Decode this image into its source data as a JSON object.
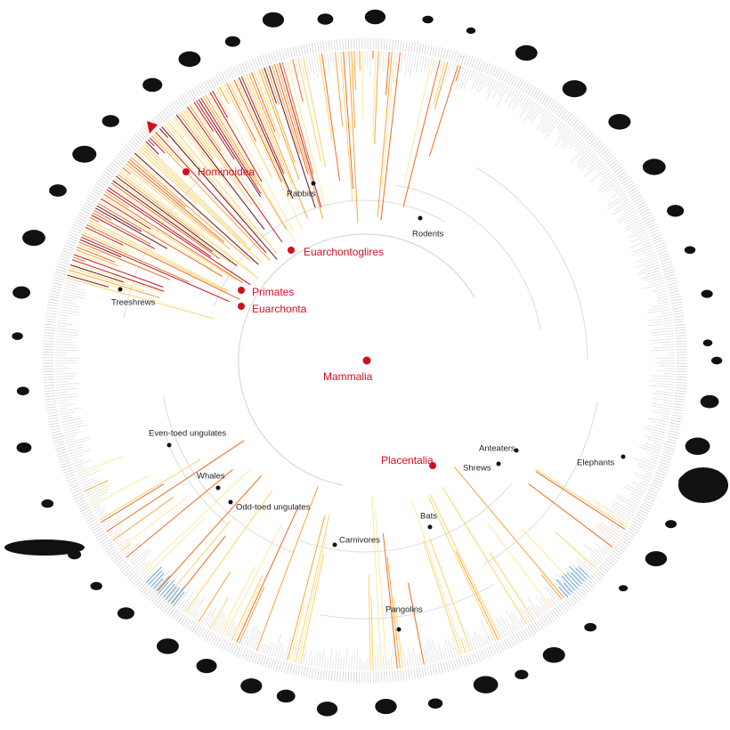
{
  "title_clades": [
    "Mammalia",
    "Placentalia",
    "Euarchontoglires",
    "Euarchonta",
    "Primates",
    "Hominoidea"
  ],
  "clades": [
    "Rabbits",
    "Rodents",
    "Treeshrews",
    "Even-toed ungulates",
    "Whales",
    "Odd-toed ungulates",
    "Carnivores",
    "Bats",
    "Pangolins",
    "Anteaters",
    "Shrews",
    "Elephants"
  ]
}
